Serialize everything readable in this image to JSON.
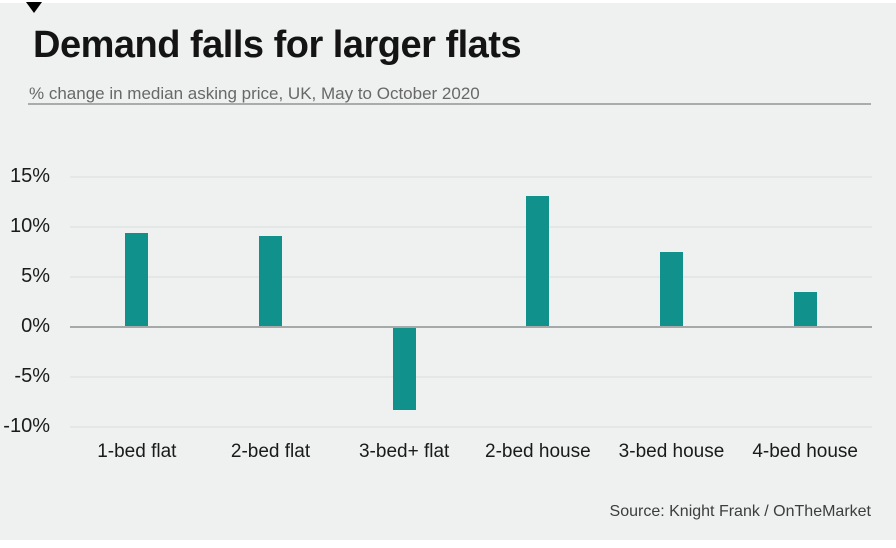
{
  "header": {
    "title": "Demand falls for larger flats",
    "subtitle": "% change in median asking price, UK, May to October 2020"
  },
  "footer": {
    "source": "Source: Knight Frank / OnTheMarket"
  },
  "colors": {
    "bar": "#10918c",
    "panel_background": "#eef1f0",
    "gridline": "#e3e7e6",
    "zero_line": "#a6a9a8",
    "title_text": "#141414",
    "subtitle_text": "#686868",
    "axis_text": "#1a1a1a",
    "source_text": "#3d3d3d",
    "marker": "#000000"
  },
  "icons": {
    "marker_triangle": "down-triangle"
  },
  "chart_data": {
    "type": "bar",
    "categories": [
      "1-bed flat",
      "2-bed flat",
      "3-bed+ flat",
      "2-bed house",
      "3-bed house",
      "4-bed house"
    ],
    "values": [
      9.4,
      9.1,
      -8.3,
      13.1,
      7.5,
      3.5
    ],
    "title": "Demand falls for larger flats",
    "subtitle": "% change in median asking price, UK, May to October 2020",
    "xlabel": "",
    "ylabel": "% change in median asking price",
    "ylim": [
      -10,
      15
    ],
    "yticks": [
      15,
      10,
      5,
      0,
      -5,
      -10
    ],
    "ytick_suffix": "%",
    "grid": true,
    "legend": false
  }
}
